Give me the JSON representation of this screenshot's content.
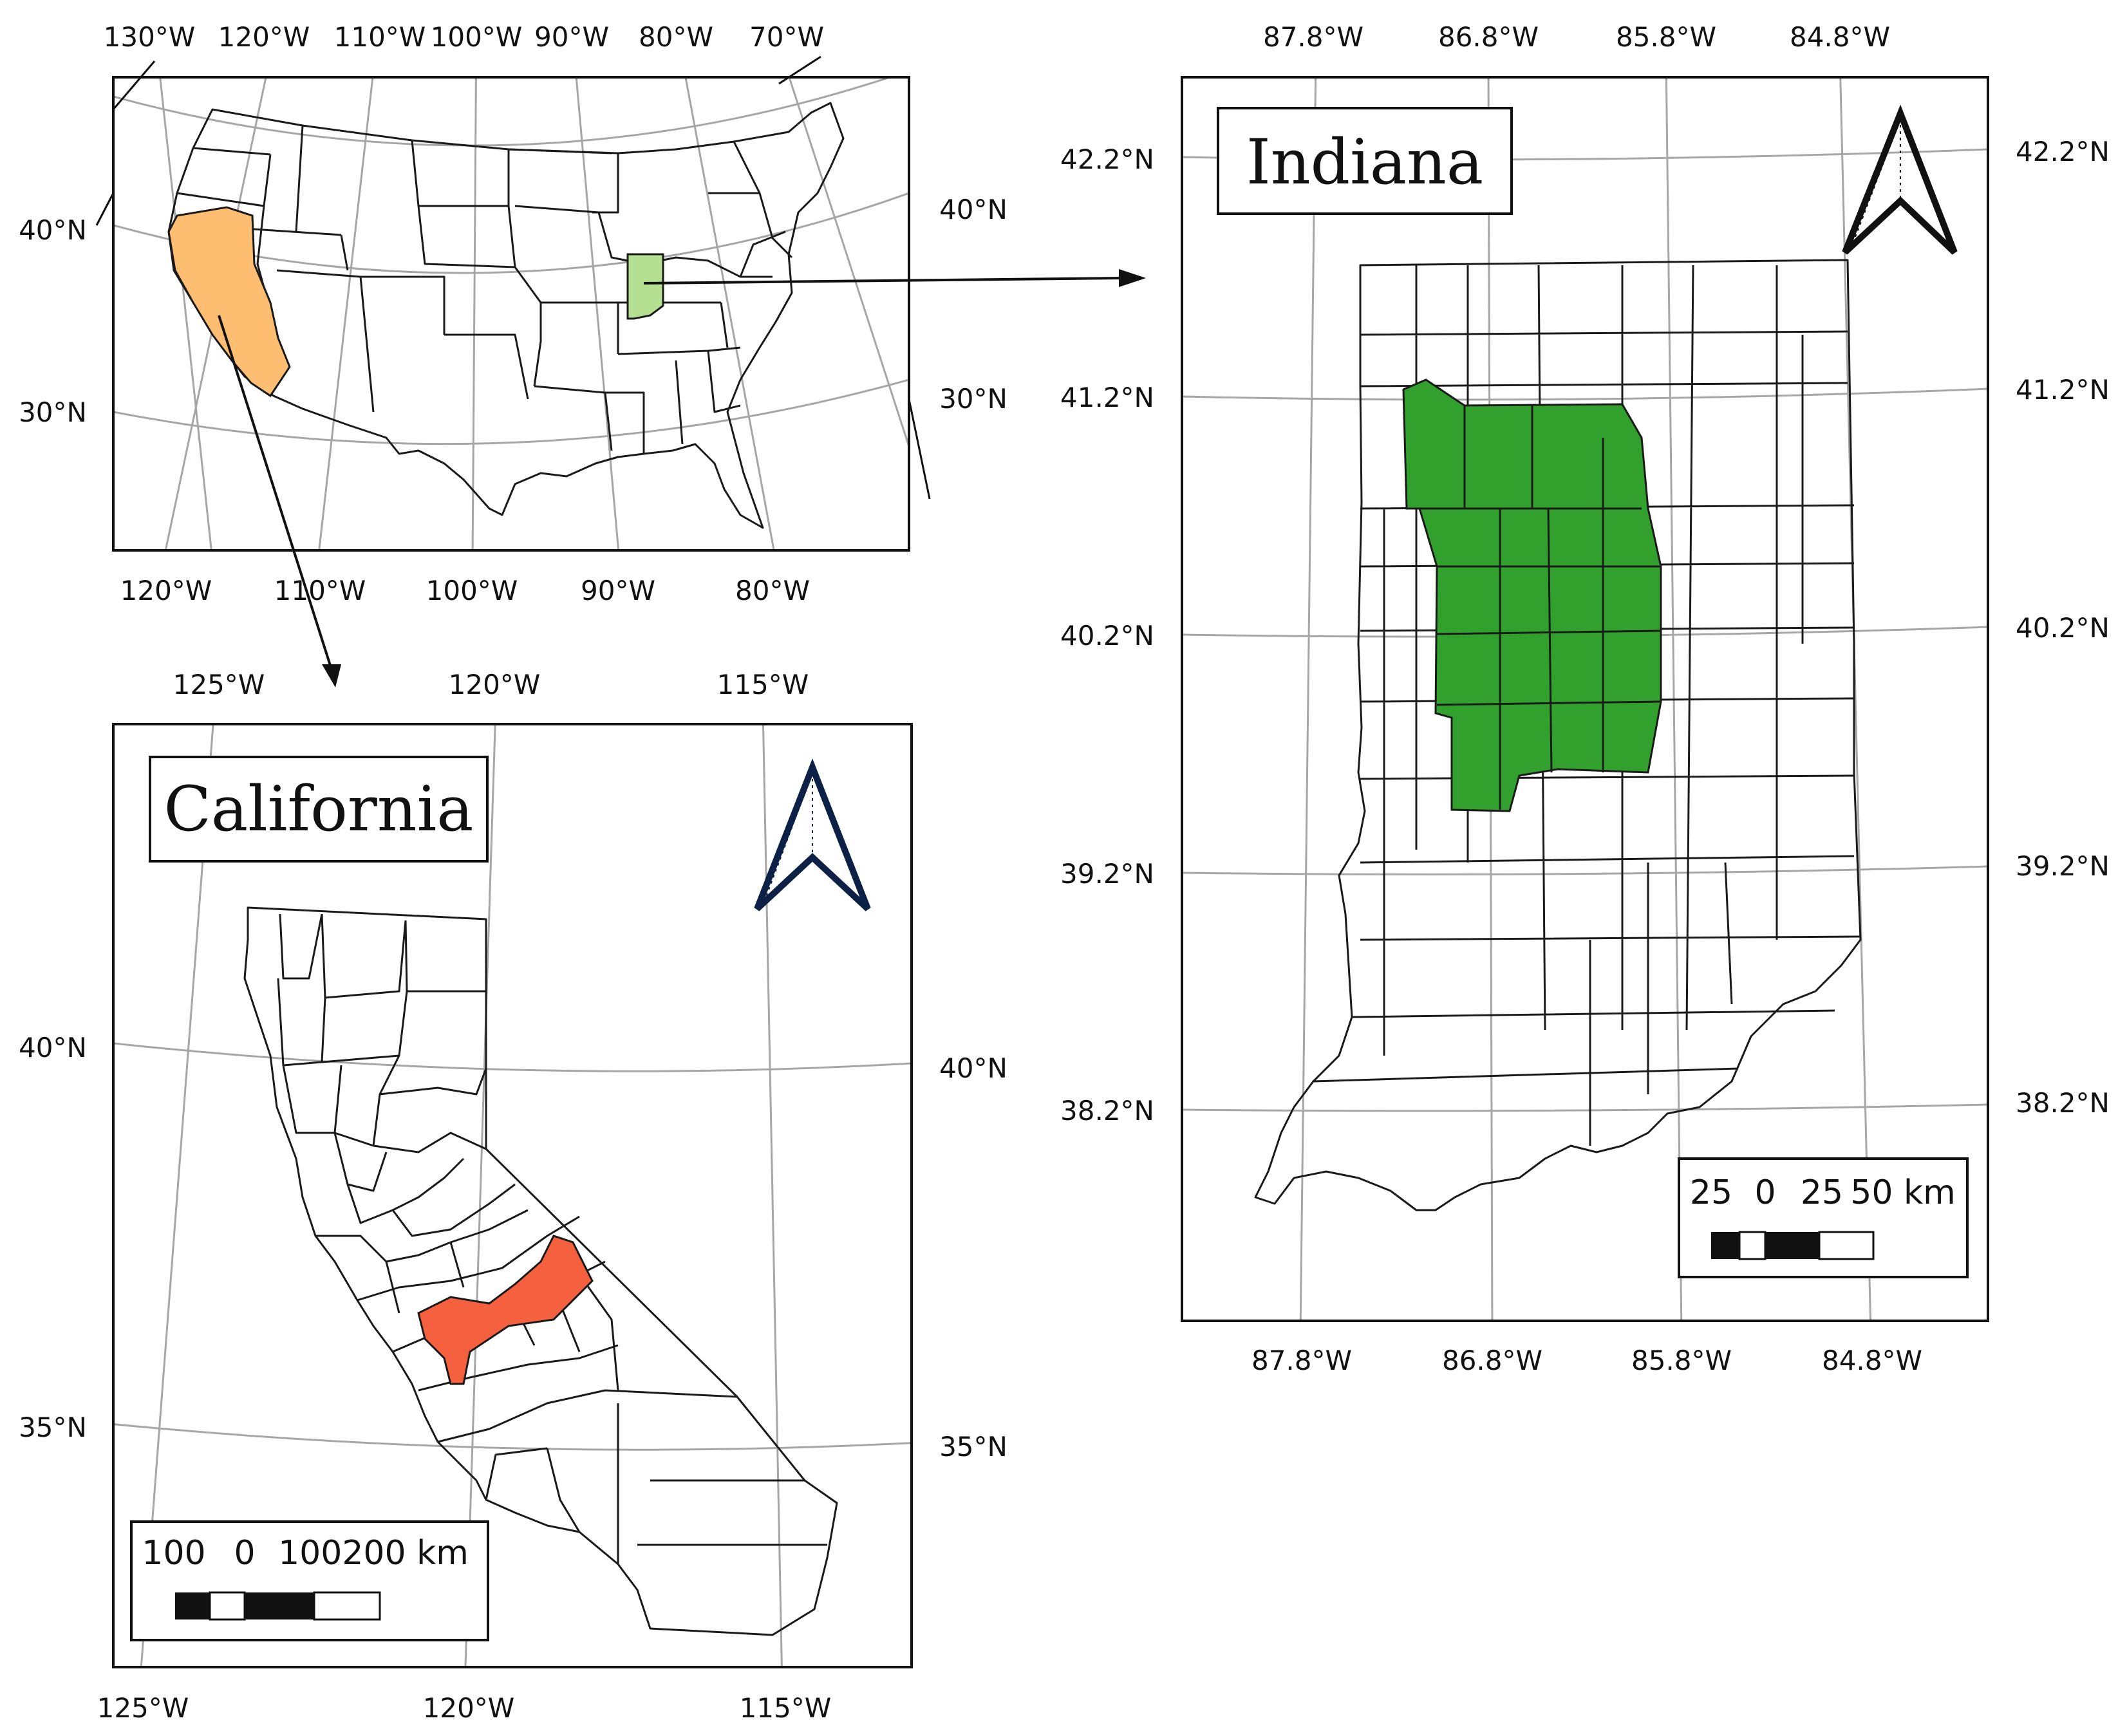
{
  "colors": {
    "california_inset": "#fdbe72",
    "indiana_inset": "#b5e092",
    "california_highlight": "#f5603f",
    "indiana_highlight": "#32a02c",
    "california_north_arrow": "#0d2147",
    "indiana_north_arrow": "#111111",
    "graticule": "#a6a6a6"
  },
  "us_map": {
    "top_lon_labels": [
      "130°W",
      "120°W",
      "110°W",
      "100°W",
      "90°W",
      "80°W",
      "70°W"
    ],
    "bottom_lon_labels": [
      "120°W",
      "110°W",
      "100°W",
      "90°W",
      "80°W"
    ],
    "left_lat_labels": [
      "40°N",
      "30°N"
    ],
    "right_lat_labels": [
      "40°N",
      "30°N"
    ]
  },
  "california_map": {
    "title": "California",
    "top_lon_labels": [
      "125°W",
      "120°W",
      "115°W"
    ],
    "bottom_lon_labels": [
      "125°W",
      "120°W",
      "115°W"
    ],
    "left_lat_labels": [
      "40°N",
      "35°N"
    ],
    "right_lat_labels": [
      "40°N",
      "35°N"
    ],
    "north_arrow_icon": "north-arrow-icon",
    "scale_bar_labels": [
      "100",
      "0",
      "100200 km"
    ]
  },
  "indiana_map": {
    "title": "Indiana",
    "top_lon_labels": [
      "87.8°W",
      "86.8°W",
      "85.8°W",
      "84.8°W"
    ],
    "bottom_lon_labels": [
      "87.8°W",
      "86.8°W",
      "85.8°W",
      "84.8°W"
    ],
    "left_lat_labels": [
      "42.2°N",
      "41.2°N",
      "40.2°N",
      "39.2°N",
      "38.2°N"
    ],
    "right_lat_labels": [
      "42.2°N",
      "41.2°N",
      "40.2°N",
      "39.2°N",
      "38.2°N"
    ],
    "north_arrow_icon": "north-arrow-icon",
    "scale_bar_labels": [
      "25",
      "0",
      "25",
      "50 km"
    ]
  }
}
